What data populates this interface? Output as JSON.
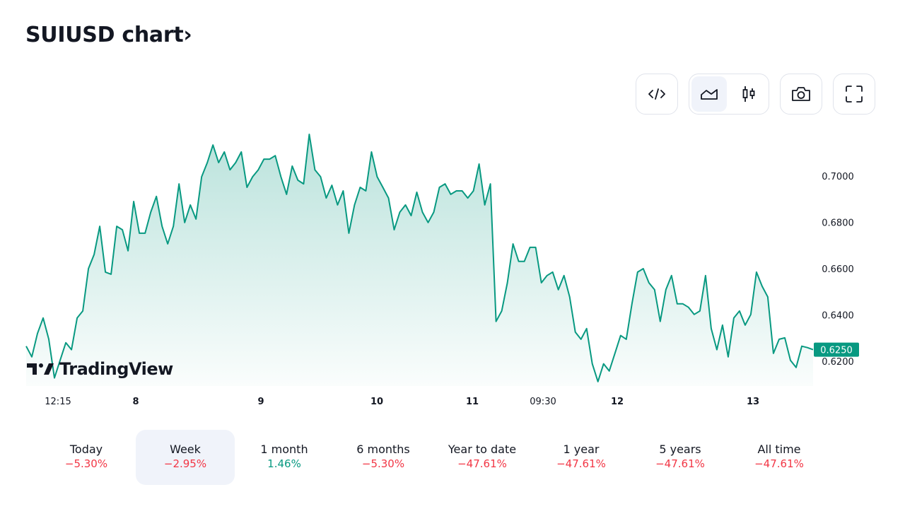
{
  "header": {
    "title": "SUIUSD chart",
    "chevron": "›"
  },
  "toolbar": {
    "embed": "code-icon",
    "area": "area-chart-icon",
    "candles": "candlestick-icon",
    "snapshot": "camera-icon",
    "fullscreen": "fullscreen-icon",
    "selected_style": "area"
  },
  "logo": {
    "text": "TradingView"
  },
  "colors": {
    "line": "#089981",
    "up": "#089981",
    "down": "#f23645",
    "selected_bg": "#f0f3fa"
  },
  "chart_data": {
    "type": "area",
    "symbol": "SUIUSD",
    "y_ticks": [
      "0.7000",
      "0.6800",
      "0.6600",
      "0.6400",
      "0.6200"
    ],
    "y_tick_values": [
      0.7,
      0.68,
      0.66,
      0.64,
      0.62
    ],
    "ylim": [
      0.608,
      0.722
    ],
    "x_ticks": [
      {
        "label": "12:15",
        "bold": false
      },
      {
        "label": "8",
        "bold": true
      },
      {
        "label": "9",
        "bold": true
      },
      {
        "label": "10",
        "bold": true
      },
      {
        "label": "11",
        "bold": true
      },
      {
        "label": "09:30",
        "bold": false
      },
      {
        "label": "12",
        "bold": true
      },
      {
        "label": "13",
        "bold": true
      }
    ],
    "last_price": "0.6250",
    "last_value": 0.625,
    "grid": false,
    "values": [
      0.6265,
      0.6219,
      0.632,
      0.6387,
      0.6295,
      0.6128,
      0.6204,
      0.628,
      0.625,
      0.6387,
      0.6417,
      0.66,
      0.6661,
      0.6783,
      0.6585,
      0.6576,
      0.6783,
      0.6768,
      0.6677,
      0.689,
      0.6753,
      0.6753,
      0.6844,
      0.6912,
      0.6783,
      0.6707,
      0.6783,
      0.6966,
      0.6799,
      0.6875,
      0.6814,
      0.6997,
      0.7058,
      0.7134,
      0.7058,
      0.7104,
      0.7027,
      0.7058,
      0.7104,
      0.6951,
      0.6997,
      0.7027,
      0.7073,
      0.7073,
      0.7088,
      0.6997,
      0.6921,
      0.7043,
      0.6982,
      0.6966,
      0.718,
      0.7027,
      0.6997,
      0.6905,
      0.696,
      0.6875,
      0.6936,
      0.6753,
      0.6875,
      0.6951,
      0.6936,
      0.7104,
      0.6997,
      0.6951,
      0.6905,
      0.6768,
      0.6844,
      0.6875,
      0.6829,
      0.693,
      0.6844,
      0.6799,
      0.6844,
      0.6951,
      0.6966,
      0.6921,
      0.6936,
      0.6936,
      0.6905,
      0.6936,
      0.7052,
      0.6875,
      0.6966,
      0.6372,
      0.6417,
      0.6539,
      0.6707,
      0.6631,
      0.6631,
      0.6692,
      0.6692,
      0.6539,
      0.657,
      0.6585,
      0.6509,
      0.657,
      0.6478,
      0.6326,
      0.6295,
      0.6341,
      0.6189,
      0.6112,
      0.6189,
      0.6158,
      0.6234,
      0.6311,
      0.6295,
      0.6448,
      0.6585,
      0.66,
      0.6539,
      0.6509,
      0.6372,
      0.6509,
      0.657,
      0.6448,
      0.6448,
      0.6433,
      0.6402,
      0.6417,
      0.657,
      0.6341,
      0.625,
      0.6356,
      0.6219,
      0.6387,
      0.6417,
      0.6356,
      0.6402,
      0.6585,
      0.6524,
      0.6478,
      0.6234,
      0.6295,
      0.6301,
      0.6204,
      0.6173,
      0.6265,
      0.6259,
      0.625
    ]
  },
  "periods": [
    {
      "label": "Today",
      "change": "−5.30%",
      "dir": "down",
      "selected": false
    },
    {
      "label": "Week",
      "change": "−2.95%",
      "dir": "down",
      "selected": true
    },
    {
      "label": "1 month",
      "change": "1.46%",
      "dir": "up",
      "selected": false
    },
    {
      "label": "6 months",
      "change": "−5.30%",
      "dir": "down",
      "selected": false
    },
    {
      "label": "Year to date",
      "change": "−47.61%",
      "dir": "down",
      "selected": false
    },
    {
      "label": "1 year",
      "change": "−47.61%",
      "dir": "down",
      "selected": false
    },
    {
      "label": "5 years",
      "change": "−47.61%",
      "dir": "down",
      "selected": false
    },
    {
      "label": "All time",
      "change": "−47.61%",
      "dir": "down",
      "selected": false
    }
  ]
}
